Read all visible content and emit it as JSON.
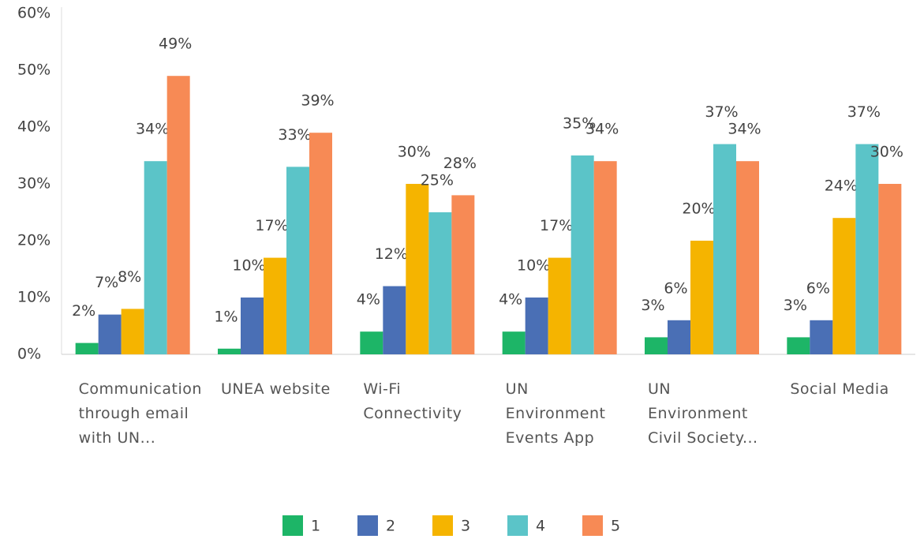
{
  "chart_data": {
    "type": "bar",
    "categories": [
      "Communication through email with UN...",
      "UNEA website",
      "Wi-Fi Connectivity",
      "UN Environment Events App",
      "UN Environment Civil Society...",
      "Social Media"
    ],
    "series": [
      {
        "name": "1",
        "color": "#1db567",
        "values": [
          2,
          1,
          4,
          4,
          3,
          3
        ],
        "value_labels": [
          "2%",
          "1%",
          "4%",
          "4%",
          "3%",
          "3%"
        ]
      },
      {
        "name": "2",
        "color": "#4a6fb5",
        "values": [
          7,
          10,
          12,
          10,
          6,
          6
        ],
        "value_labels": [
          "7%",
          "10%",
          "12%",
          "10%",
          "6%",
          "6%"
        ]
      },
      {
        "name": "3",
        "color": "#f5b400",
        "values": [
          8,
          17,
          30,
          17,
          20,
          24
        ],
        "value_labels": [
          "8%",
          "17%",
          "30%",
          "17%",
          "20%",
          "24%"
        ]
      },
      {
        "name": "4",
        "color": "#5bc4c8",
        "values": [
          34,
          33,
          25,
          35,
          37,
          37
        ],
        "value_labels": [
          "34%",
          "33%",
          "25%",
          "35%",
          "37%",
          "37%"
        ]
      },
      {
        "name": "5",
        "color": "#f78a55",
        "values": [
          49,
          39,
          28,
          34,
          34,
          30
        ],
        "value_labels": [
          "49%",
          "39%",
          "28%",
          "34%",
          "34%",
          "30%"
        ]
      }
    ],
    "ylim": [
      0,
      60
    ],
    "yticks": [
      {
        "value": 0,
        "label": "0%"
      },
      {
        "value": 10,
        "label": "10%"
      },
      {
        "value": 20,
        "label": "20%"
      },
      {
        "value": 30,
        "label": "30%"
      },
      {
        "value": 40,
        "label": "40%"
      },
      {
        "value": 50,
        "label": "50%"
      },
      {
        "value": 60,
        "label": "60%"
      }
    ],
    "grid": false
  }
}
